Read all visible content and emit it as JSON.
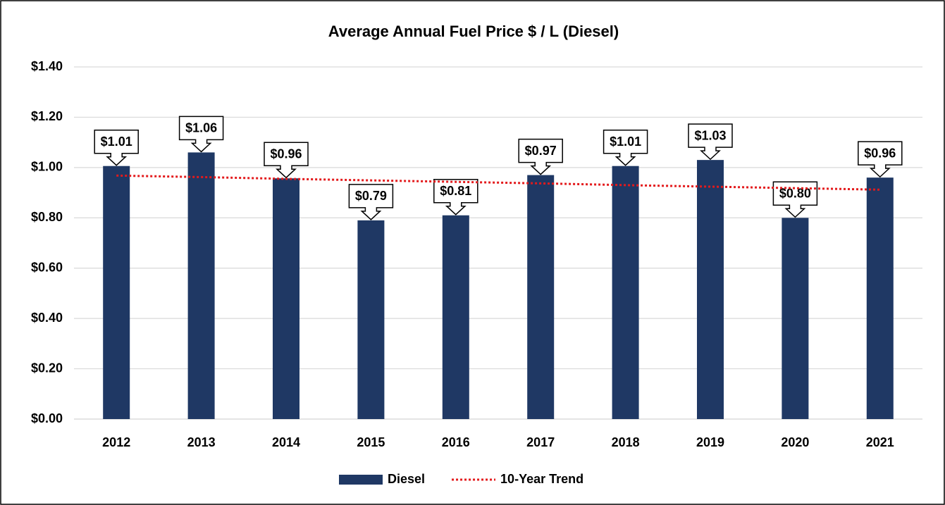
{
  "chart_data": {
    "type": "bar",
    "title": "Average Annual Fuel Price $ / L (Diesel)",
    "categories": [
      "2012",
      "2013",
      "2014",
      "2015",
      "2016",
      "2017",
      "2018",
      "2019",
      "2020",
      "2021"
    ],
    "series": [
      {
        "name": "Diesel",
        "color": "#1f3864",
        "values": [
          1.006,
          1.06,
          0.957,
          0.79,
          0.81,
          0.97,
          1.006,
          1.03,
          0.8,
          0.96
        ],
        "value_labels": [
          "$1.01",
          "$1.06",
          "$0.96",
          "$0.79",
          "$0.81",
          "$0.97",
          "$1.01",
          "$1.03",
          "$0.80",
          "$0.96"
        ]
      },
      {
        "name": "10-Year Trend",
        "type": "line",
        "color": "#e31a1c",
        "values": [
          0.968,
          0.962,
          0.955,
          0.949,
          0.943,
          0.937,
          0.93,
          0.924,
          0.918,
          0.912
        ]
      }
    ],
    "ylim": [
      0,
      1.4
    ],
    "yticks": [
      {
        "value": 0,
        "label": "$0.00"
      },
      {
        "value": 0.2,
        "label": "$0.20"
      },
      {
        "value": 0.4,
        "label": "$0.40"
      },
      {
        "value": 0.6,
        "label": "$0.60"
      },
      {
        "value": 0.8,
        "label": "$0.80"
      },
      {
        "value": 1.0,
        "label": "$1.00"
      },
      {
        "value": 1.2,
        "label": "$1.20"
      },
      {
        "value": 1.4,
        "label": "$1.40"
      }
    ],
    "grid": true,
    "legend": "bottom"
  }
}
